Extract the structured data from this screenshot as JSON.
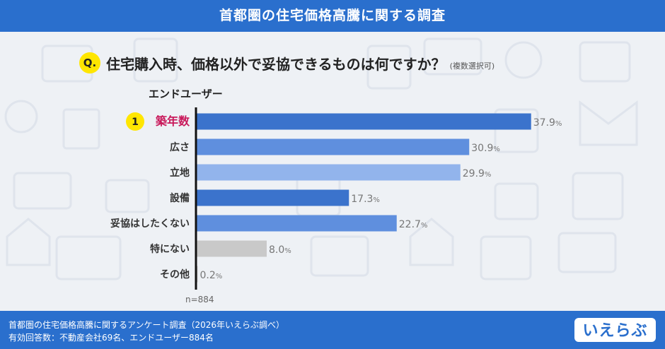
{
  "header": {
    "title": "首都圏の住宅価格高騰に関する調査"
  },
  "question": {
    "badge": "Q.",
    "text": "住宅購入時、価格以外で妥協できるものは何ですか？",
    "note": "(複数選択可)"
  },
  "series_label": "エンドユーザー",
  "rank_badge": "1",
  "sample_size": "n=884",
  "footer": {
    "line1": "首都圏の住宅価格高騰に関するアンケート調査（2026年いえらぶ調べ）",
    "line2": "有効回答数：不動産会社69名、エンドユーザー884名"
  },
  "brand": "いえらぶ",
  "colors": {
    "header_bg": "#2a6fcd",
    "bar_dark": "#3b73cc",
    "bar_mid": "#5f8fde",
    "bar_light": "#92b4ec",
    "bar_gray": "#c9c9c9",
    "highlight_text": "#c8185a",
    "badge_yellow": "#ffe600"
  },
  "chart_data": {
    "type": "bar",
    "orientation": "horizontal",
    "categories": [
      "築年数",
      "広さ",
      "立地",
      "設備",
      "妥協はしたくない",
      "特にない",
      "その他"
    ],
    "values": [
      37.9,
      30.9,
      29.9,
      17.3,
      22.7,
      8.0,
      0.2
    ],
    "value_labels": [
      "37.9",
      "30.9",
      "29.9",
      "17.3",
      "22.7",
      "8.0",
      "0.2"
    ],
    "unit": "%",
    "bar_color_keys": [
      "bar_dark",
      "bar_mid",
      "bar_light",
      "bar_dark",
      "bar_mid",
      "bar_gray",
      "bar_gray"
    ],
    "highlight_index": 0,
    "xlim": [
      0,
      40
    ]
  }
}
